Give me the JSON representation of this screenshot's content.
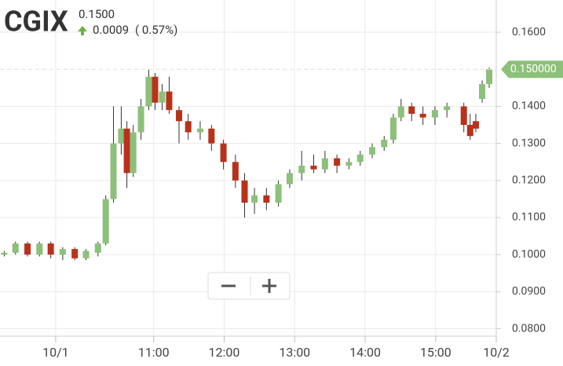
{
  "header": {
    "ticker": "CGIX",
    "price": "0.1500",
    "change": "0.0009",
    "change_pct": "( 0.57%)"
  },
  "chart_data": {
    "type": "candlestick",
    "up_color": "#8dc07a",
    "down_color": "#b8321a",
    "grid": true,
    "last_price": {
      "value": 0.15,
      "label": "0.150000"
    },
    "last_price_color": "#8dc07a",
    "xlim": [
      8.82,
      15.86
    ],
    "ylim": [
      0.078,
      0.1687
    ],
    "xticks": [
      {
        "value": 9.61,
        "label": "10/1"
      },
      {
        "value": 11,
        "label": "11:00"
      },
      {
        "value": 12,
        "label": "12:00"
      },
      {
        "value": 13,
        "label": "13:00"
      },
      {
        "value": 14,
        "label": "14:00"
      },
      {
        "value": 15,
        "label": "15:00"
      },
      {
        "value": 15.86,
        "label": "10/2"
      }
    ],
    "yticks": [
      {
        "value": 0.08,
        "label": "0.0800"
      },
      {
        "value": 0.09,
        "label": "0.0900"
      },
      {
        "value": 0.1,
        "label": "0.1000"
      },
      {
        "value": 0.11,
        "label": "0.1100"
      },
      {
        "value": 0.12,
        "label": "0.1200"
      },
      {
        "value": 0.13,
        "label": "0.1300"
      },
      {
        "value": 0.14,
        "label": "0.1400"
      },
      {
        "value": 0.16,
        "label": "0.1600"
      }
    ],
    "x": [
      8.88,
      9.04,
      9.21,
      9.38,
      9.54,
      9.71,
      9.88,
      10.04,
      10.21,
      10.32,
      10.43,
      10.54,
      10.62,
      10.71,
      10.82,
      10.93,
      11.02,
      11.12,
      11.22,
      11.36,
      11.49,
      11.66,
      11.82,
      11.99,
      12.16,
      12.29,
      12.43,
      12.6,
      12.77,
      12.93,
      13.1,
      13.27,
      13.43,
      13.6,
      13.77,
      13.93,
      14.1,
      14.27,
      14.4,
      14.51,
      14.66,
      14.82,
      14.99,
      15.16,
      15.4,
      15.49,
      15.57,
      15.66,
      15.76
    ],
    "open": [
      0.1,
      0.1005,
      0.103,
      0.1,
      0.103,
      0.1,
      0.1015,
      0.099,
      0.1005,
      0.103,
      0.115,
      0.13,
      0.134,
      0.122,
      0.133,
      0.14,
      0.148,
      0.141,
      0.144,
      0.139,
      0.136,
      0.133,
      0.134,
      0.13,
      0.125,
      0.12,
      0.114,
      0.116,
      0.114,
      0.119,
      0.122,
      0.124,
      0.123,
      0.126,
      0.124,
      0.125,
      0.127,
      0.129,
      0.131,
      0.137,
      0.14,
      0.138,
      0.137,
      0.139,
      0.14,
      0.135,
      0.136,
      0.142,
      0.146
    ],
    "high": [
      0.101,
      0.1035,
      0.1035,
      0.1035,
      0.1035,
      0.102,
      0.102,
      0.1015,
      0.1035,
      0.116,
      0.14,
      0.14,
      0.136,
      0.135,
      0.142,
      0.15,
      0.149,
      0.146,
      0.148,
      0.14,
      0.138,
      0.136,
      0.135,
      0.131,
      0.127,
      0.122,
      0.118,
      0.118,
      0.12,
      0.123,
      0.128,
      0.127,
      0.128,
      0.127,
      0.126,
      0.128,
      0.13,
      0.132,
      0.138,
      0.142,
      0.141,
      0.14,
      0.14,
      0.141,
      0.141,
      0.138,
      0.138,
      0.147,
      0.1505
    ],
    "low": [
      0.0995,
      0.1,
      0.0995,
      0.0995,
      0.099,
      0.0985,
      0.0985,
      0.0985,
      0.0995,
      0.1025,
      0.114,
      0.127,
      0.118,
      0.121,
      0.131,
      0.139,
      0.139,
      0.139,
      0.138,
      0.13,
      0.131,
      0.131,
      0.128,
      0.123,
      0.118,
      0.11,
      0.111,
      0.112,
      0.113,
      0.118,
      0.12,
      0.122,
      0.122,
      0.122,
      0.123,
      0.124,
      0.126,
      0.128,
      0.13,
      0.136,
      0.136,
      0.135,
      0.135,
      0.137,
      0.133,
      0.131,
      0.133,
      0.141,
      0.145
    ],
    "close": [
      0.1005,
      0.103,
      0.1,
      0.103,
      0.1,
      0.1015,
      0.099,
      0.101,
      0.103,
      0.115,
      0.13,
      0.134,
      0.122,
      0.133,
      0.14,
      0.148,
      0.141,
      0.144,
      0.139,
      0.136,
      0.133,
      0.134,
      0.13,
      0.125,
      0.12,
      0.114,
      0.116,
      0.114,
      0.119,
      0.122,
      0.124,
      0.123,
      0.126,
      0.124,
      0.125,
      0.127,
      0.129,
      0.131,
      0.137,
      0.14,
      0.138,
      0.137,
      0.139,
      0.14,
      0.135,
      0.132,
      0.134,
      0.146,
      0.15
    ]
  }
}
